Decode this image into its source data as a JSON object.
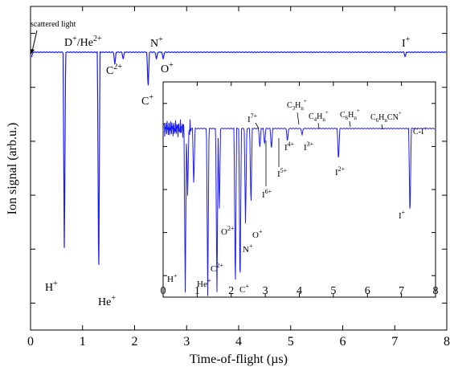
{
  "chart_data": {
    "type": "line",
    "xlabel": "Time-of-flight  (µs)",
    "ylabel": "Ion signal  (arb.u.)",
    "xlim": [
      0,
      8
    ],
    "xticks": [
      "0",
      "1",
      "2",
      "3",
      "4",
      "5",
      "6",
      "7",
      "8"
    ],
    "series_color": "#1a1aff",
    "main_annotations": [
      {
        "label": "scattered light",
        "sup": ""
      },
      {
        "label": "D",
        "sup": "+"
      },
      {
        "label": "/He",
        "sup": "2+"
      },
      {
        "label": "C",
        "sup": "2+"
      },
      {
        "label": "N",
        "sup": "+"
      },
      {
        "label": "O",
        "sup": "+"
      },
      {
        "label": "C",
        "sup": "+"
      },
      {
        "label": "I",
        "sup": "+"
      },
      {
        "label": "H",
        "sup": "+"
      },
      {
        "label": "He",
        "sup": "+"
      }
    ],
    "main_peaks": [
      {
        "x": 0.02,
        "depth": 0.02
      },
      {
        "x": 0.65,
        "depth": 0.84
      },
      {
        "x": 1.31,
        "depth": 0.97
      },
      {
        "x": 1.62,
        "depth": 0.05
      },
      {
        "x": 1.78,
        "depth": 0.03
      },
      {
        "x": 2.26,
        "depth": 0.15
      },
      {
        "x": 2.42,
        "depth": 0.03
      },
      {
        "x": 2.55,
        "depth": 0.03
      },
      {
        "x": 7.2,
        "depth": 0.02
      }
    ],
    "inset": {
      "xlim": [
        0,
        8
      ],
      "xticks": [
        "0",
        "1",
        "2",
        "3",
        "4",
        "5",
        "6",
        "7",
        "8"
      ],
      "annotations": [
        {
          "label": "H",
          "sup": "+",
          "sub": ""
        },
        {
          "label": "He",
          "sup": "+",
          "sub": ""
        },
        {
          "label": "C",
          "sup": "2+",
          "sub": ""
        },
        {
          "label": "O",
          "sup": "2+",
          "sub": ""
        },
        {
          "label": "C",
          "sup": "+",
          "sub": ""
        },
        {
          "label": "N",
          "sup": "+",
          "sub": ""
        },
        {
          "label": "O",
          "sup": "+",
          "sub": ""
        },
        {
          "label": "I",
          "sup": "7+",
          "sub": ""
        },
        {
          "label": "I",
          "sup": "6+",
          "sub": ""
        },
        {
          "label": "I",
          "sup": "5+",
          "sub": ""
        },
        {
          "label": "I",
          "sup": "4+",
          "sub": ""
        },
        {
          "label": "I",
          "sup": "3+",
          "sub": ""
        },
        {
          "label": "C",
          "sup": "+",
          "sub": "3",
          "after": "H",
          "after_sup": "",
          "after_sub": "n"
        },
        {
          "label": "C",
          "sup": "+",
          "sub": "4",
          "after": "H",
          "after_sup": "",
          "after_sub": "n"
        },
        {
          "label": "C",
          "sup": "+",
          "sub": "6",
          "after": "H",
          "after_sup": "",
          "after_sub": "n"
        },
        {
          "label": "C",
          "sup": "+",
          "sub": "6",
          "after": "H",
          "after_sup": "",
          "after_sub": "n",
          "tail": "CN"
        },
        {
          "label": "I",
          "sup": "2+",
          "sub": ""
        },
        {
          "label": "C-I",
          "sup": "+",
          "sub": ""
        },
        {
          "label": "I",
          "sup": "+",
          "sub": ""
        }
      ],
      "peaks": [
        {
          "x": 0.65,
          "depth": 1.0
        },
        {
          "x": 0.72,
          "depth": 0.4
        },
        {
          "x": 0.9,
          "depth": 0.35
        },
        {
          "x": 1.31,
          "depth": 1.0
        },
        {
          "x": 1.58,
          "depth": 1.0
        },
        {
          "x": 1.65,
          "depth": 0.5
        },
        {
          "x": 2.12,
          "depth": 1.0
        },
        {
          "x": 2.26,
          "depth": 1.0
        },
        {
          "x": 2.42,
          "depth": 0.58
        },
        {
          "x": 2.58,
          "depth": 0.48
        },
        {
          "x": 2.84,
          "depth": 0.12
        },
        {
          "x": 2.98,
          "depth": 0.1
        },
        {
          "x": 3.18,
          "depth": 0.13
        },
        {
          "x": 3.65,
          "depth": 0.08
        },
        {
          "x": 4.08,
          "depth": 0.04
        },
        {
          "x": 5.15,
          "depth": 0.2
        },
        {
          "x": 7.25,
          "depth": 0.55
        }
      ]
    }
  }
}
